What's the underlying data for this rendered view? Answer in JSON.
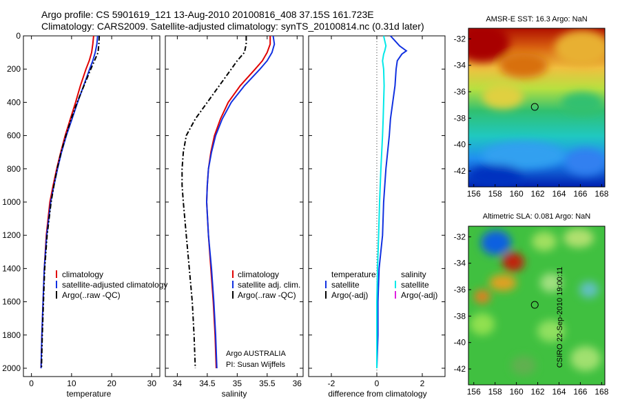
{
  "header": {
    "line1": "Argo profile: CS 5901619_121 13-Aug-2010 20100816_408 37.15S 161.723E",
    "line2": "Climatology: CARS2009. Satellite-adjusted climatology: synTS_20100814.nc (0.31d later)"
  },
  "footer_stamp": "CSIRO 22-Sep-2010 19:00:11",
  "colors": {
    "climatology": "#e00000",
    "satellite": "#1030e0",
    "argo": "#000000",
    "salinity_satellite": "#00e8e8",
    "salinity_argo_adj": "#e020e0"
  },
  "chart_data": [
    {
      "type": "line",
      "name": "temperature-panel",
      "xlabel": "temperature",
      "ylabel": "",
      "xlim": [
        -2,
        32
      ],
      "ylim": [
        2050,
        0
      ],
      "xticks": [
        0,
        10,
        20,
        30
      ],
      "yticks": [
        0,
        200,
        400,
        600,
        800,
        1000,
        1200,
        1400,
        1600,
        1800,
        2000
      ],
      "legend": [
        "climatology",
        "satellite-adjusted climatology",
        "Argo(..raw -QC)"
      ],
      "depth": [
        0,
        50,
        100,
        150,
        200,
        300,
        400,
        500,
        600,
        700,
        800,
        900,
        1000,
        1200,
        1400,
        1600,
        1800,
        2000
      ],
      "series": [
        {
          "name": "climatology",
          "style": "solid",
          "color_key": "climatology",
          "values": [
            15.5,
            15.3,
            15.0,
            14.4,
            13.6,
            12.2,
            11.0,
            9.7,
            8.4,
            7.3,
            6.3,
            5.4,
            4.6,
            3.7,
            3.2,
            2.9,
            2.6,
            2.4
          ]
        },
        {
          "name": "satellite-adjusted climatology",
          "style": "solid",
          "color_key": "satellite",
          "values": [
            16.5,
            16.3,
            15.9,
            15.3,
            14.5,
            13.0,
            11.5,
            10.1,
            8.7,
            7.5,
            6.5,
            5.6,
            4.8,
            3.8,
            3.2,
            2.9,
            2.6,
            2.4
          ]
        },
        {
          "name": "Argo(..raw -QC)",
          "style": "dashdot",
          "color_key": "argo",
          "values": [
            16.9,
            16.8,
            16.6,
            15.7,
            14.8,
            13.1,
            11.4,
            9.9,
            8.6,
            7.4,
            6.4,
            5.6,
            4.9,
            3.9,
            3.3,
            3.0,
            2.7,
            2.5
          ]
        }
      ]
    },
    {
      "type": "line",
      "name": "salinity-panel",
      "xlabel": "salinity",
      "xlim": [
        33.8,
        36.1
      ],
      "ylim": [
        2050,
        0
      ],
      "xticks": [
        34,
        34.5,
        35,
        35.5,
        36
      ],
      "legend": [
        "climatology",
        "satellite adj. clim.",
        "Argo(..raw -QC)"
      ],
      "annotation": [
        "Argo AUSTRALIA",
        "PI: Susan Wijffels"
      ],
      "depth": [
        0,
        50,
        100,
        150,
        200,
        300,
        400,
        500,
        600,
        700,
        800,
        900,
        1000,
        1200,
        1400,
        1600,
        1800,
        2000
      ],
      "series": [
        {
          "name": "climatology",
          "style": "solid",
          "color_key": "climatology",
          "values": [
            35.55,
            35.55,
            35.5,
            35.42,
            35.3,
            35.05,
            34.85,
            34.72,
            34.62,
            34.56,
            34.52,
            34.5,
            34.49,
            34.52,
            34.56,
            34.6,
            34.63,
            34.65
          ]
        },
        {
          "name": "satellite adj. clim.",
          "style": "solid",
          "color_key": "satellite",
          "values": [
            35.6,
            35.62,
            35.58,
            35.5,
            35.38,
            35.12,
            34.9,
            34.75,
            34.64,
            34.57,
            34.52,
            34.5,
            34.49,
            34.52,
            34.57,
            34.61,
            34.64,
            34.66
          ]
        },
        {
          "name": "Argo(..raw -QC)",
          "style": "dashdot",
          "color_key": "argo",
          "values": [
            35.15,
            35.15,
            35.12,
            35.0,
            34.9,
            34.7,
            34.5,
            34.3,
            34.15,
            34.1,
            34.08,
            34.08,
            34.1,
            34.15,
            34.2,
            34.25,
            34.28,
            34.3
          ]
        }
      ]
    },
    {
      "type": "line",
      "name": "difference-panel",
      "xlabel": "difference from climatology",
      "xlim": [
        -3,
        3
      ],
      "ylim": [
        2050,
        0
      ],
      "xticks": [
        -2,
        0,
        2
      ],
      "legend_left_title": "temperature",
      "legend_right_title": "salinity",
      "legend_left": [
        "satellite",
        "Argo(-adj)"
      ],
      "legend_right": [
        "satellite",
        "Argo(-adj)"
      ],
      "depth": [
        0,
        30,
        60,
        90,
        110,
        150,
        200,
        300,
        400,
        500,
        600,
        800,
        1000,
        1200,
        1400,
        1600,
        1800,
        2000
      ],
      "series": [
        {
          "name": "temperature satellite",
          "style": "solid",
          "color_key": "satellite",
          "values": [
            0.6,
            0.8,
            1.0,
            1.3,
            1.1,
            0.9,
            0.85,
            0.8,
            0.7,
            0.6,
            0.55,
            0.4,
            0.3,
            0.25,
            0.1,
            0.05,
            0.05,
            0.0
          ]
        },
        {
          "name": "salinity satellite",
          "style": "solid",
          "color_key": "salinity_satellite",
          "values": [
            0.3,
            0.35,
            0.4,
            0.35,
            0.3,
            0.25,
            0.3,
            0.32,
            0.3,
            0.28,
            0.25,
            0.18,
            0.12,
            0.08,
            0.03,
            0.0,
            0.0,
            0.0
          ]
        }
      ]
    },
    {
      "type": "heatmap",
      "name": "sst-map",
      "title": "AMSR-E SST: 16.3 Argo: NaN",
      "xlim": [
        155.5,
        168.3
      ],
      "ylim": [
        -43.2,
        -31.2
      ],
      "xticks": [
        156,
        158,
        160,
        162,
        164,
        166,
        168
      ],
      "yticks": [
        -32,
        -34,
        -36,
        -38,
        -40,
        -42
      ],
      "marker": {
        "lon": 161.723,
        "lat": -37.15
      }
    },
    {
      "type": "heatmap",
      "name": "sla-map",
      "title": "Altimetric SLA: 0.081 Argo: NaN",
      "xlim": [
        155.5,
        168.3
      ],
      "ylim": [
        -43.2,
        -31.2
      ],
      "xticks": [
        156,
        158,
        160,
        162,
        164,
        166,
        168
      ],
      "yticks": [
        -32,
        -34,
        -36,
        -38,
        -40,
        -42
      ],
      "marker": {
        "lon": 161.723,
        "lat": -37.15
      }
    }
  ]
}
